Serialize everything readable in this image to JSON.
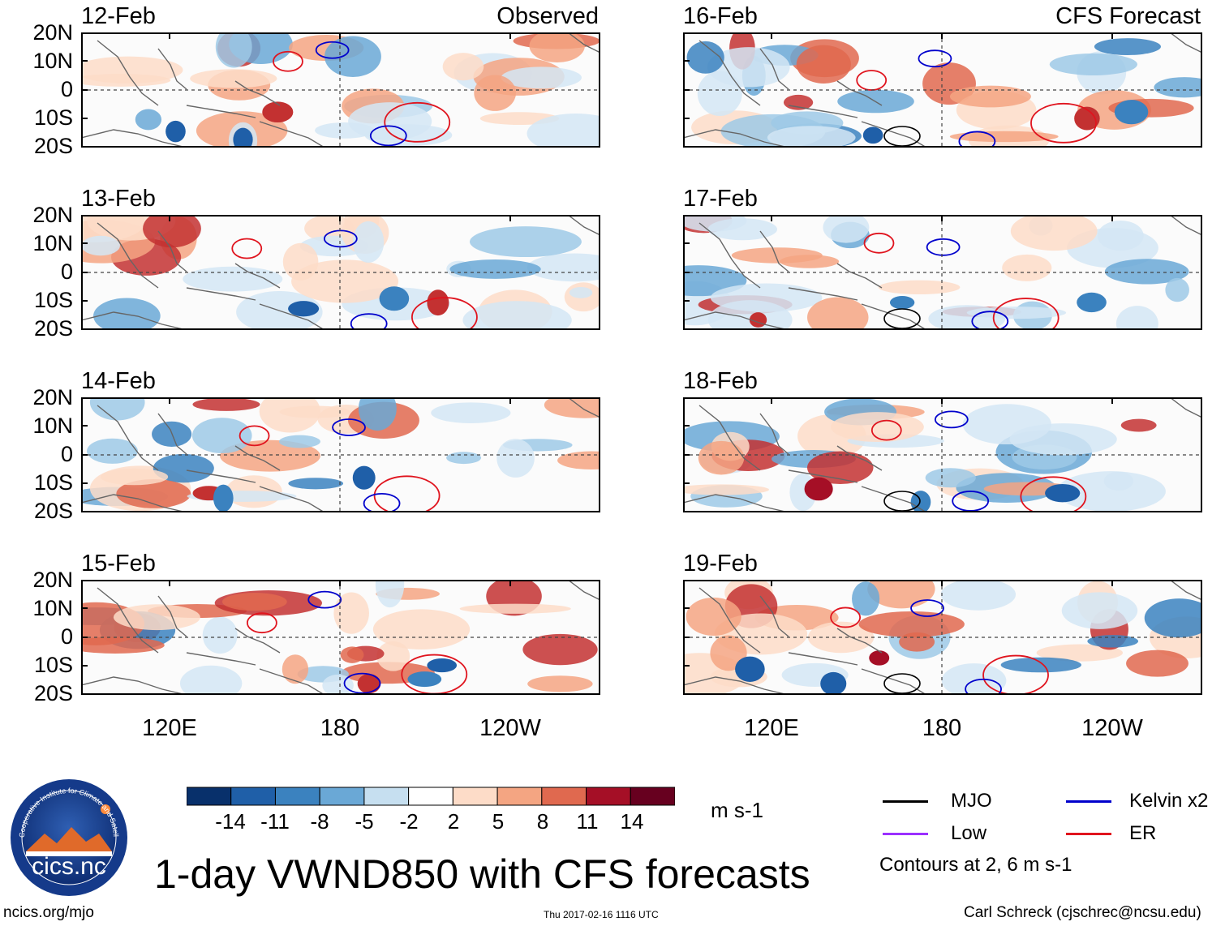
{
  "figure": {
    "title": "1-day VWND850 with CFS forecasts",
    "left_column_label": "Observed",
    "right_column_label": "CFS Forecast",
    "y_tick_labels": [
      "20N",
      "10N",
      "0",
      "10S",
      "20S"
    ],
    "x_tick_labels": [
      "120E",
      "180",
      "120W"
    ]
  },
  "panels_observed": [
    {
      "date": "12-Feb"
    },
    {
      "date": "13-Feb"
    },
    {
      "date": "14-Feb"
    },
    {
      "date": "15-Feb"
    }
  ],
  "panels_forecast": [
    {
      "date": "16-Feb"
    },
    {
      "date": "17-Feb"
    },
    {
      "date": "18-Feb"
    },
    {
      "date": "19-Feb"
    }
  ],
  "colorbar": {
    "labels": [
      "-14",
      "-11",
      "-8",
      "-5",
      "-2",
      "2",
      "5",
      "8",
      "11",
      "14"
    ],
    "colors": [
      "#08306b",
      "#1f5fa8",
      "#3b82bf",
      "#6aa8d6",
      "#9ec9e6",
      "#d4e6f4",
      "#ffffff",
      "#fddcc8",
      "#f4a582",
      "#e0694f",
      "#c33131",
      "#a50f26",
      "#67001f"
    ],
    "units": "m s-1"
  },
  "legend": {
    "items": [
      {
        "label": "MJO",
        "color": "#000000"
      },
      {
        "label": "Kelvin x2",
        "color": "#0000cc"
      },
      {
        "label": "Low",
        "color": "#9b30ff"
      },
      {
        "label": "ER",
        "color": "#e0141e"
      }
    ],
    "note": "Contours at 2, 6 m s-1"
  },
  "footer": {
    "website": "ncics.org/mjo",
    "timestamp": "Thu 2017-02-16 1116 UTC",
    "author": "Carl Schreck (cjschrec@ncsu.edu)"
  },
  "logo": {
    "text": "cics.nc",
    "ring_text": "Cooperative Institute for Climate and Satellites"
  }
}
